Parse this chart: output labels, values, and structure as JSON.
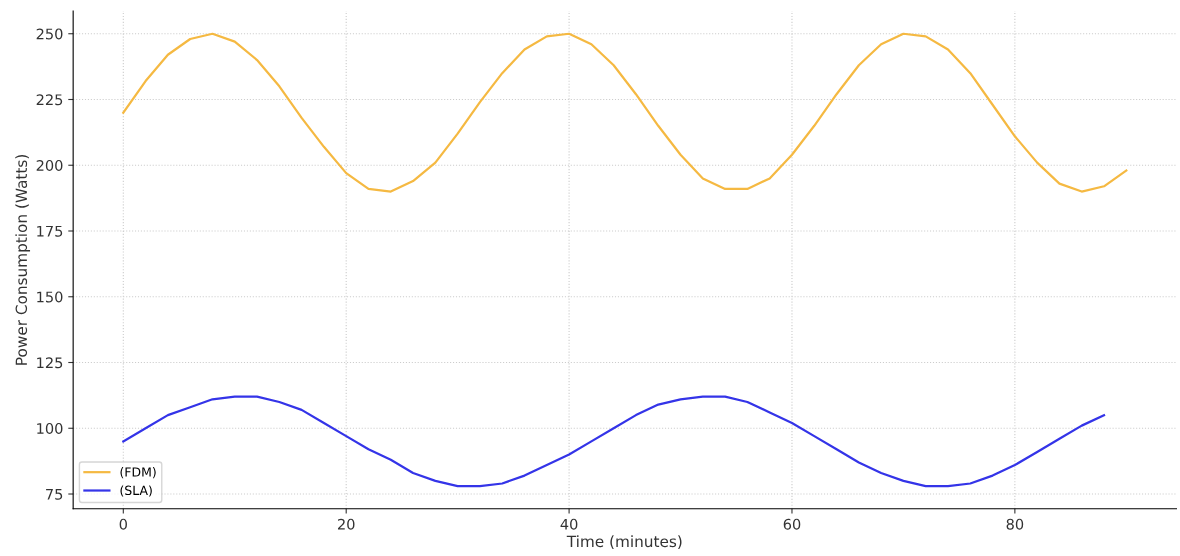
{
  "chart_data": {
    "type": "line",
    "xlabel": "Time (minutes)",
    "ylabel": "Power Consumption (Watts)",
    "xlim": [
      -4.5,
      94.5
    ],
    "xticks": [
      0,
      20,
      40,
      60,
      80
    ],
    "ylim": [
      69.4,
      258.6
    ],
    "yticks": [
      75,
      100,
      125,
      150,
      175,
      200,
      225,
      250
    ],
    "grid": true,
    "legend": "bottom left",
    "marker": "none",
    "line_style": "solid",
    "series": [
      {
        "name": "(FDM)",
        "color": "#f5b942",
        "x": [
          0,
          2,
          4,
          6,
          8,
          10,
          12,
          14,
          16,
          18,
          20,
          22,
          24,
          26,
          28,
          30,
          32,
          34,
          36,
          38,
          40,
          42,
          44,
          46,
          48,
          50,
          52,
          54,
          56,
          58,
          60,
          62,
          64,
          66,
          68,
          70,
          72,
          74,
          76,
          78,
          80,
          82,
          84,
          86,
          88,
          90
        ],
        "values": [
          220,
          232,
          242,
          248,
          250,
          247,
          240,
          230,
          218,
          207,
          197,
          191,
          190,
          194,
          201,
          212,
          224,
          235,
          244,
          249,
          250,
          246,
          238,
          227,
          215,
          204,
          195,
          191,
          191,
          195,
          204,
          215,
          227,
          238,
          246,
          250,
          249,
          244,
          235,
          223,
          211,
          201,
          193,
          190,
          192,
          198
        ]
      },
      {
        "name": "(SLA)",
        "color": "#3434e8",
        "x": [
          0,
          2,
          4,
          6,
          8,
          10,
          12,
          14,
          16,
          18,
          20,
          22,
          24,
          26,
          28,
          30,
          32,
          34,
          36,
          38,
          40,
          42,
          44,
          46,
          48,
          50,
          52,
          54,
          56,
          58,
          60,
          62,
          64,
          66,
          68,
          70,
          72,
          74,
          76,
          78,
          80,
          82,
          84,
          86,
          88
        ],
        "values": [
          95,
          100,
          105,
          108,
          111,
          112,
          112,
          110,
          107,
          102,
          97,
          92,
          88,
          83,
          80,
          78,
          78,
          79,
          82,
          86,
          90,
          95,
          100,
          105,
          109,
          111,
          112,
          112,
          110,
          106,
          102,
          97,
          92,
          87,
          83,
          80,
          78,
          78,
          79,
          82,
          86,
          91,
          96,
          101,
          105
        ]
      }
    ]
  }
}
